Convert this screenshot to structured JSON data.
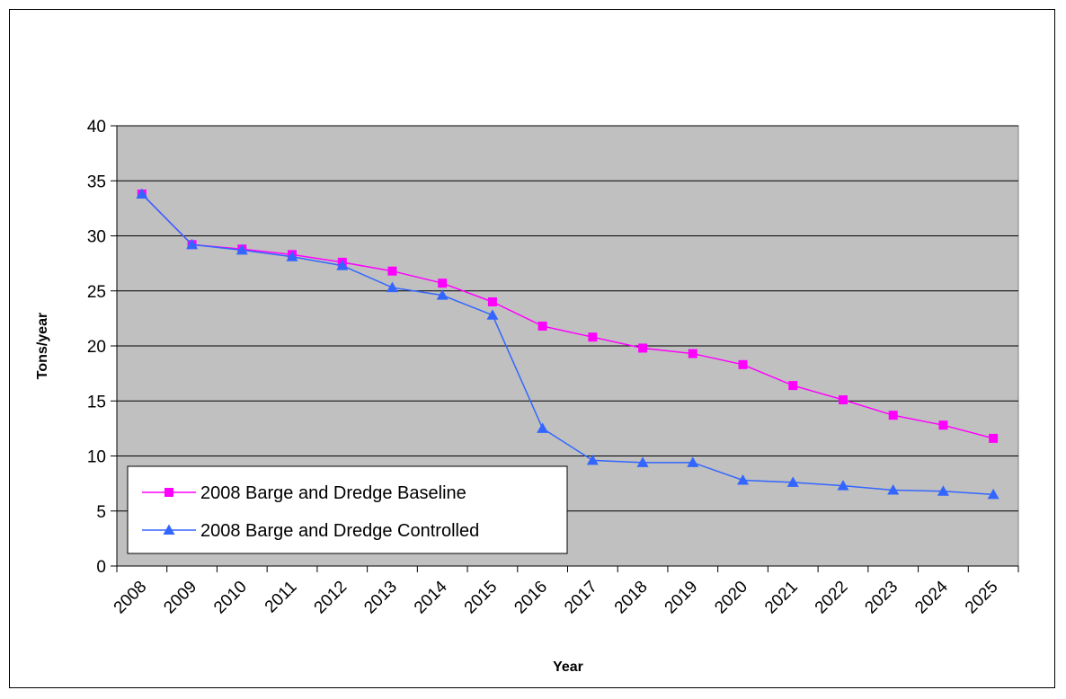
{
  "chart_data": {
    "type": "line",
    "categories": [
      "2008",
      "2009",
      "2010",
      "2011",
      "2012",
      "2013",
      "2014",
      "2015",
      "2016",
      "2017",
      "2018",
      "2019",
      "2020",
      "2021",
      "2022",
      "2023",
      "2024",
      "2025"
    ],
    "xlabel": "Year",
    "ylabel": "Tons/year",
    "ylim": [
      0,
      40
    ],
    "yticks": [
      0,
      5,
      10,
      15,
      20,
      25,
      30,
      35,
      40
    ],
    "grid": true,
    "legend_position": "bottom-left",
    "plot_background": "#c0c0c0",
    "series": [
      {
        "name": "2008 Barge and Dredge Baseline",
        "color": "#ff00ff",
        "marker": "square",
        "values": [
          33.8,
          29.2,
          28.8,
          28.3,
          27.6,
          26.8,
          25.7,
          24.0,
          21.8,
          20.8,
          19.8,
          19.3,
          18.3,
          16.4,
          15.1,
          13.7,
          12.8,
          11.6
        ]
      },
      {
        "name": "2008 Barge and Dredge Controlled",
        "color": "#3366ff",
        "marker": "triangle",
        "values": [
          33.8,
          29.2,
          28.7,
          28.1,
          27.3,
          25.3,
          24.6,
          22.8,
          12.5,
          9.6,
          9.4,
          9.4,
          7.8,
          7.6,
          7.3,
          6.9,
          6.8,
          6.5
        ]
      }
    ]
  }
}
